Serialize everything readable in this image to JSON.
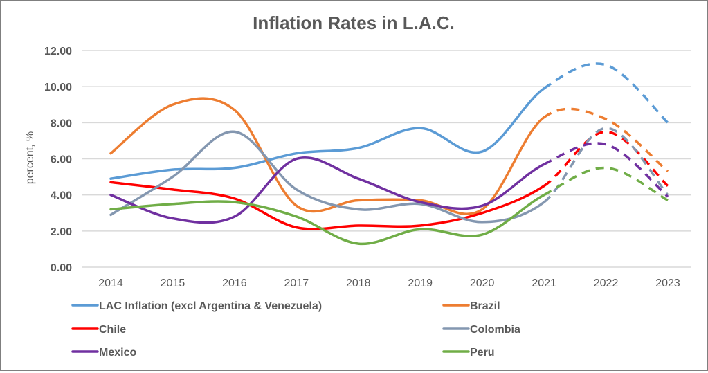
{
  "chart_data": {
    "type": "line",
    "title": "Inflation Rates in L.A.C.",
    "xlabel": "",
    "ylabel": "percent, %",
    "ylim": [
      0,
      12
    ],
    "yticks": [
      "0.00",
      "2.00",
      "4.00",
      "6.00",
      "8.00",
      "10.00",
      "12.00"
    ],
    "ytick_values": [
      0,
      2,
      4,
      6,
      8,
      10,
      12
    ],
    "grid": true,
    "legend_position": "bottom",
    "x": [
      "2014",
      "2015",
      "2016",
      "2017",
      "2018",
      "2019",
      "2020",
      "2021",
      "2022",
      "2023"
    ],
    "forecast_from": "2021",
    "line_style_note": "solid through 2021, dashed for 2022-2023 (projection)",
    "series": [
      {
        "name": "LAC Inflation (excl Argentina & Venezuela)",
        "color": "#5b9bd5",
        "values": [
          4.9,
          5.4,
          5.5,
          6.3,
          6.6,
          7.7,
          6.4,
          9.9,
          11.2,
          8.0
        ]
      },
      {
        "name": "Brazil",
        "color": "#ed7d31",
        "values": [
          6.3,
          9.0,
          8.7,
          3.4,
          3.7,
          3.7,
          3.2,
          8.3,
          8.2,
          5.3
        ]
      },
      {
        "name": "Chile",
        "color": "#ff0000",
        "values": [
          4.7,
          4.3,
          3.8,
          2.2,
          2.3,
          2.3,
          3.0,
          4.5,
          7.5,
          4.5
        ]
      },
      {
        "name": "Colombia",
        "color": "#8497b0",
        "values": [
          2.9,
          5.0,
          7.5,
          4.3,
          3.2,
          3.5,
          2.5,
          3.6,
          7.7,
          4.0
        ]
      },
      {
        "name": "Mexico",
        "color": "#7030a0",
        "values": [
          4.0,
          2.7,
          2.8,
          6.0,
          4.9,
          3.6,
          3.4,
          5.7,
          6.8,
          3.9
        ]
      },
      {
        "name": "Peru",
        "color": "#70ad47",
        "values": [
          3.2,
          3.5,
          3.6,
          2.8,
          1.3,
          2.1,
          1.8,
          4.0,
          5.5,
          3.7
        ]
      }
    ]
  }
}
